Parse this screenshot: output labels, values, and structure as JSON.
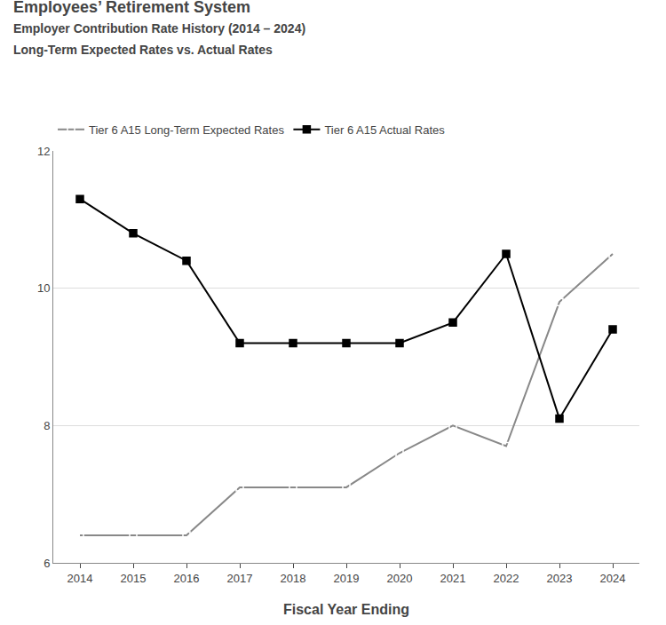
{
  "chart_data": {
    "type": "line",
    "title": "Employees’ Retirement System",
    "subtitle": [
      "Employer Contribution Rate History (2014 – 2024)",
      "Long-Term Expected Rates vs. Actual Rates"
    ],
    "x_label": "Fiscal Year Ending",
    "x": [
      2014,
      2015,
      2016,
      2017,
      2018,
      2019,
      2020,
      2021,
      2022,
      2023,
      2024
    ],
    "series": [
      {
        "name": "Tier 6 A15 Long-Term Expected Rates",
        "color": "#888888",
        "marker": "square-open",
        "values": [
          6.4,
          6.4,
          6.4,
          7.1,
          7.1,
          7.1,
          7.6,
          8.0,
          7.7,
          9.8,
          10.5
        ]
      },
      {
        "name": "Tier 6 A15 Actual Rates",
        "color": "#000000",
        "marker": "square",
        "values": [
          11.3,
          10.8,
          10.4,
          9.2,
          9.2,
          9.2,
          9.2,
          9.5,
          10.5,
          8.1,
          9.4
        ]
      }
    ],
    "xlim": [
      2013.5,
      2024.5
    ],
    "xticks": [
      2014,
      2015,
      2016,
      2017,
      2018,
      2019,
      2020,
      2021,
      2022,
      2023,
      2024
    ],
    "ylim": [
      6,
      12
    ],
    "yticks": [
      6,
      8,
      10,
      12
    ],
    "grid": true,
    "legend": "upper left"
  }
}
